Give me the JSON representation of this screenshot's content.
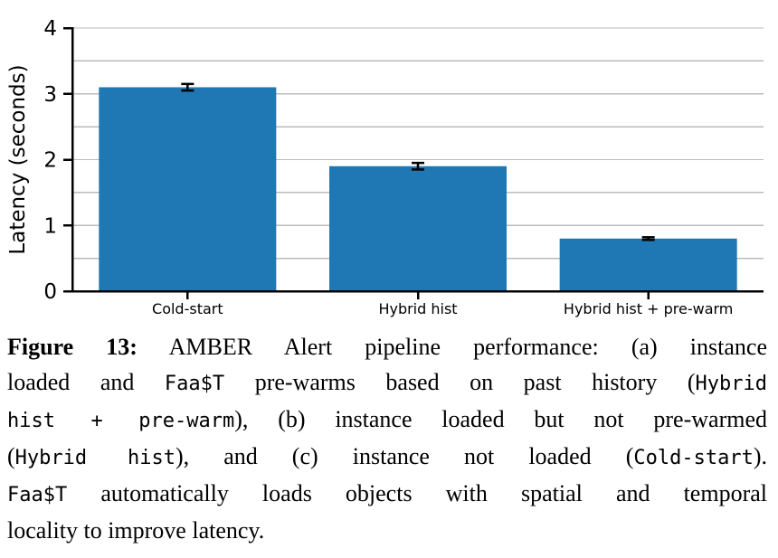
{
  "figure": {
    "chart_data": {
      "type": "bar",
      "title": "",
      "categories": [
        "Cold-start",
        "Hybrid hist",
        "Hybrid hist + pre-warm"
      ],
      "values": [
        3.1,
        1.9,
        0.8
      ],
      "errors": [
        0.05,
        0.05,
        0.02
      ],
      "xlabel": "",
      "ylabel": "Latency (seconds)",
      "ylim": [
        0,
        4
      ],
      "yticks": [
        0,
        1,
        2,
        3,
        4
      ],
      "grid": "horizontal",
      "grid_interval": 0.5,
      "legend": "none",
      "bar_color": "#1f77b4",
      "error_color": "#000000",
      "grid_color": "#bbbbbb",
      "axis_color": "#000000"
    },
    "caption": {
      "label": "Figure 13:",
      "lines": [
        [
          {
            "t": "Figure 13:",
            "f": "bold"
          },
          {
            "t": " AMBER Alert pipeline performance: (a) instance",
            "f": "serif"
          }
        ],
        [
          {
            "t": "loaded and ",
            "f": "serif"
          },
          {
            "t": "Faa$T",
            "f": "mono"
          },
          {
            "t": " pre-warms based on past history (",
            "f": "serif"
          },
          {
            "t": "Hybrid",
            "f": "mono"
          }
        ],
        [
          {
            "t": "hist + pre-warm",
            "f": "mono"
          },
          {
            "t": "), (b) instance loaded but not pre-warmed",
            "f": "serif"
          }
        ],
        [
          {
            "t": "(",
            "f": "serif"
          },
          {
            "t": "Hybrid hist",
            "f": "mono"
          },
          {
            "t": "), and (c) instance not loaded (",
            "f": "serif"
          },
          {
            "t": "Cold-start",
            "f": "mono"
          },
          {
            "t": ").",
            "f": "serif"
          }
        ],
        [
          {
            "t": "Faa$T",
            "f": "mono"
          },
          {
            "t": " automatically loads objects with spatial and temporal",
            "f": "serif"
          }
        ],
        [
          {
            "t": "locality to improve latency.",
            "f": "serif"
          }
        ]
      ]
    }
  }
}
